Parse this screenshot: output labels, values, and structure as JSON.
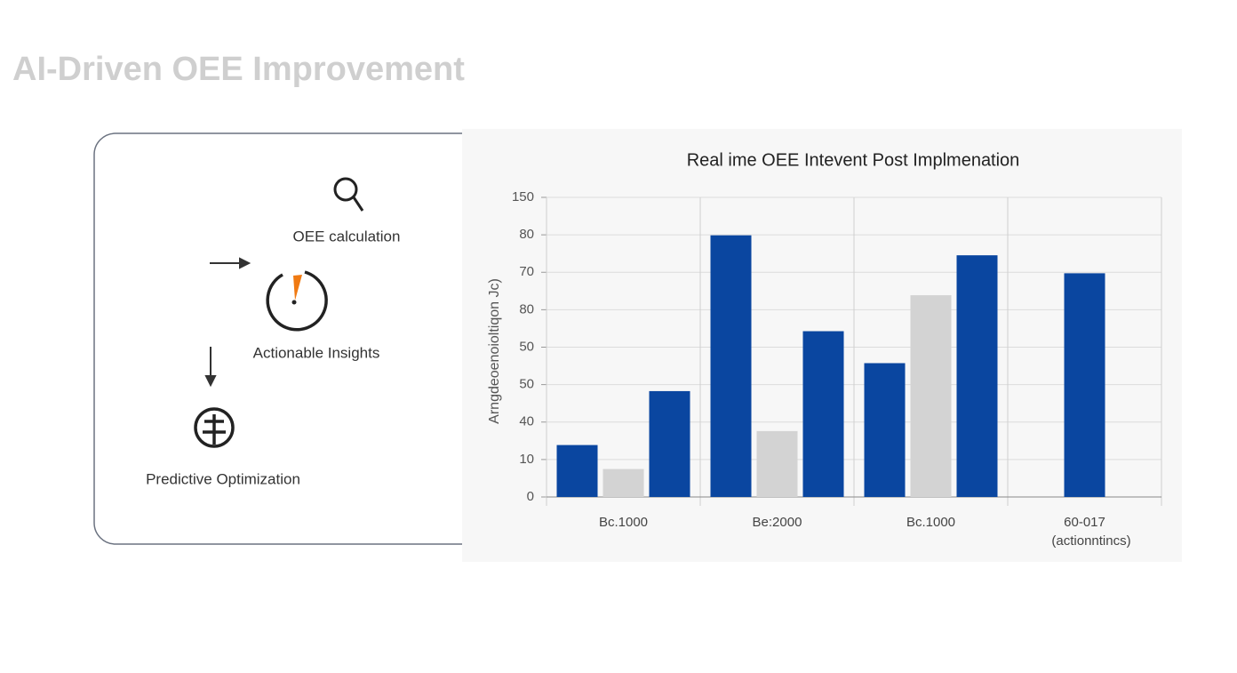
{
  "header": {
    "title": "AI-Driven OEE Improvement"
  },
  "flow": {
    "steps": [
      "OEE calculation",
      "Actionable Insights",
      "Predictive Optimization"
    ]
  },
  "chart_data": {
    "type": "bar",
    "title": "Real ime OEE Intevent Post Implmenation",
    "ylabel": "Arngdeoenoioltiqon Jc)",
    "xlabel": "(actionntincs)",
    "categories": [
      "Bc.1000",
      "Be:2000",
      "Bc.1000",
      "60-017"
    ],
    "series": [
      {
        "color": "#0a46a0",
        "values": [
          26,
          131,
          67,
          null
        ]
      },
      {
        "color": "#d3d3d3",
        "values": [
          14,
          33,
          101,
          null
        ]
      },
      {
        "color": "#0a46a0",
        "values": [
          53,
          83,
          121,
          112
        ]
      }
    ],
    "ylim": [
      0,
      150
    ],
    "yticks": [
      0,
      {
        "value": 18.75,
        "label": "10"
      },
      {
        "value": 37.5,
        "label": "40"
      },
      {
        "value": 56.25,
        "label": "50"
      },
      {
        "value": 75,
        "label": "50"
      },
      {
        "value": 93.75,
        "label": "80"
      },
      {
        "value": 112.5,
        "label": "70"
      },
      {
        "value": 131.25,
        "label": "80"
      },
      150
    ],
    "grid": true
  }
}
